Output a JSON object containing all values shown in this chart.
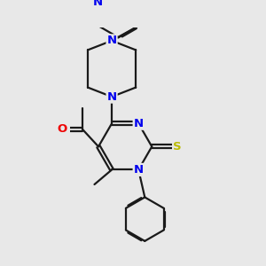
{
  "bg_color": "#e8e8e8",
  "bond_color": "#1a1a1a",
  "N_color": "#0000ee",
  "O_color": "#ee0000",
  "S_color": "#bbbb00",
  "lw": 1.6,
  "dbl_off": 0.055,
  "fs": 9.5,
  "fig_w": 3.0,
  "fig_h": 3.0,
  "dpi": 100,
  "xlim": [
    -1.2,
    2.8
  ],
  "ylim": [
    -3.8,
    3.8
  ]
}
